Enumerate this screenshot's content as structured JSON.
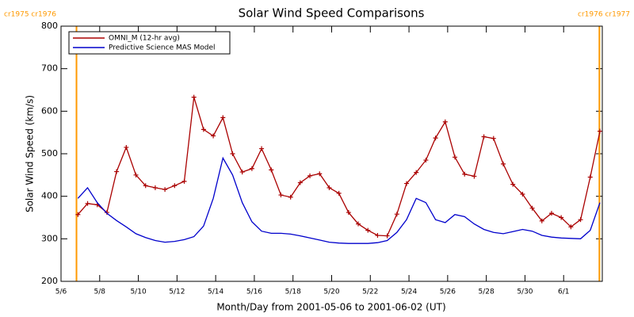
{
  "chart_data": {
    "type": "line",
    "title": "Solar Wind Speed Comparisons",
    "xlabel": "Month/Day from 2001-05-06 to 2001-06-02 (UT)",
    "ylabel": "Solar Wind Speed (km/s)",
    "x": [
      0.875,
      1.375,
      1.875,
      2.375,
      2.875,
      3.375,
      3.875,
      4.375,
      4.875,
      5.375,
      5.875,
      6.375,
      6.875,
      7.375,
      7.875,
      8.375,
      8.875,
      9.375,
      9.875,
      10.375,
      10.875,
      11.375,
      11.875,
      12.375,
      12.875,
      13.375,
      13.875,
      14.375,
      14.875,
      15.375,
      15.875,
      16.375,
      16.875,
      17.375,
      17.875,
      18.375,
      18.875,
      19.375,
      19.875,
      20.375,
      20.875,
      21.375,
      21.875,
      22.375,
      22.875,
      23.375,
      23.875,
      24.375,
      24.875,
      25.375,
      25.875,
      26.375,
      26.875,
      27.375,
      27.875
    ],
    "series": [
      {
        "name": "OMNI_M (12-hr avg)",
        "color": "#aa0000",
        "markers": true,
        "values": [
          357,
          383,
          380,
          362,
          458,
          515,
          450,
          425,
          420,
          416,
          425,
          435,
          633,
          557,
          542,
          585,
          500,
          457,
          465,
          512,
          462,
          403,
          398,
          432,
          448,
          453,
          420,
          407,
          362,
          335,
          320,
          308,
          307,
          358,
          430,
          456,
          485,
          537,
          575,
          492,
          452,
          447,
          540,
          536,
          476,
          428,
          405,
          372,
          342,
          360,
          350,
          328,
          345,
          445,
          553
        ]
      },
      {
        "name": "Predictive Science MAS Model",
        "color": "#0000cc",
        "markers": false,
        "values": [
          395,
          420,
          385,
          360,
          343,
          328,
          312,
          303,
          296,
          292,
          294,
          298,
          305,
          330,
          395,
          490,
          450,
          385,
          340,
          318,
          313,
          313,
          311,
          307,
          302,
          297,
          292,
          290,
          289,
          289,
          289,
          291,
          296,
          315,
          345,
          395,
          385,
          345,
          338,
          357,
          352,
          335,
          322,
          315,
          312,
          317,
          322,
          318,
          308,
          304,
          302,
          301,
          300,
          320,
          385
        ]
      }
    ],
    "xlim": [
      0,
      28
    ],
    "xticks": [
      {
        "value": 0,
        "label": "5/6"
      },
      {
        "value": 2,
        "label": "5/8"
      },
      {
        "value": 4,
        "label": "5/10"
      },
      {
        "value": 6,
        "label": "5/12"
      },
      {
        "value": 8,
        "label": "5/14"
      },
      {
        "value": 10,
        "label": "5/16"
      },
      {
        "value": 12,
        "label": "5/18"
      },
      {
        "value": 14,
        "label": "5/20"
      },
      {
        "value": 16,
        "label": "5/22"
      },
      {
        "value": 18,
        "label": "5/24"
      },
      {
        "value": 20,
        "label": "5/26"
      },
      {
        "value": 22,
        "label": "5/28"
      },
      {
        "value": 24,
        "label": "5/30"
      },
      {
        "value": 26,
        "label": "6/1"
      }
    ],
    "ylim": [
      200,
      800
    ],
    "yticks": [
      200,
      300,
      400,
      500,
      600,
      700,
      800
    ],
    "markers": [
      {
        "x": 0.8,
        "label": "cr1975 cr1976",
        "color": "#ff9900"
      },
      {
        "x": 27.85,
        "label": "cr1976 cr1977",
        "color": "#ff9900"
      }
    ],
    "legend": "upper left"
  }
}
